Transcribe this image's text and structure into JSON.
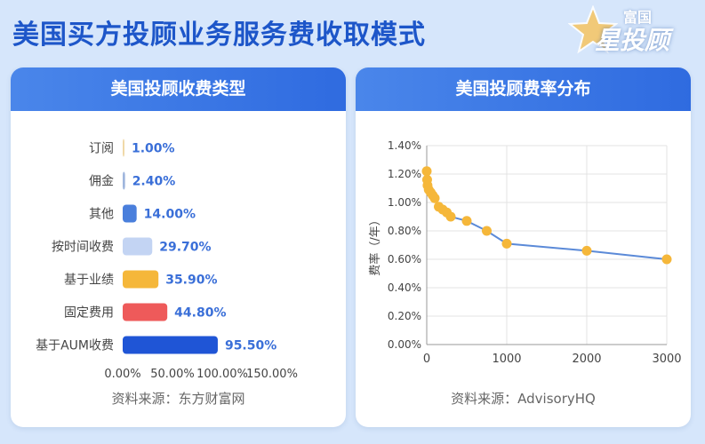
{
  "page_title": "美国买方投顾业务服务费收取模式",
  "brand": {
    "top": "富国",
    "main": "星投顾"
  },
  "colors": {
    "title_blue": "#1d56c9",
    "header_blue": "#3574e4",
    "line_blue": "#5b8ad8",
    "point_orange": "#f5b73a",
    "label_blue": "#3a6fd8"
  },
  "left_card": {
    "title": "美国投顾收费类型",
    "source": "资料来源：东方财富网"
  },
  "right_card": {
    "title": "美国投顾费率分布",
    "source": "资料来源：AdvisoryHQ"
  },
  "chart_data": [
    {
      "type": "bar",
      "orientation": "horizontal",
      "categories": [
        "订阅",
        "佣金",
        "其他",
        "按时间收费",
        "基于业绩",
        "固定费用",
        "基于AUM收费"
      ],
      "values": [
        1.0,
        2.4,
        14.0,
        29.7,
        35.9,
        44.8,
        95.5
      ],
      "value_labels": [
        "1.00%",
        "2.40%",
        "14.00%",
        "29.70%",
        "35.90%",
        "44.80%",
        "95.50%"
      ],
      "bar_colors": [
        "#f0d9a8",
        "#9fb6dd",
        "#4a7fdc",
        "#c3d4f3",
        "#f5b73a",
        "#ee5a5a",
        "#1f55d6"
      ],
      "xlim": [
        0,
        150
      ],
      "xticks": [
        "0.00%",
        "50.00%",
        "100.00%",
        "150.00%"
      ],
      "grid": false
    },
    {
      "type": "line",
      "x": [
        0,
        5,
        10,
        25,
        50,
        75,
        100,
        150,
        200,
        250,
        300,
        500,
        750,
        1000,
        2000,
        3000
      ],
      "y": [
        1.22,
        1.16,
        1.12,
        1.09,
        1.07,
        1.05,
        1.03,
        0.97,
        0.95,
        0.93,
        0.9,
        0.87,
        0.8,
        0.71,
        0.66,
        0.6
      ],
      "ylabel": "费率（/年）",
      "xlim": [
        0,
        3000
      ],
      "ylim": [
        0,
        1.4
      ],
      "xticks": [
        "0",
        "1000",
        "2000",
        "3000"
      ],
      "yticks": [
        "0.00%",
        "0.20%",
        "0.40%",
        "0.60%",
        "0.80%",
        "1.00%",
        "1.20%",
        "1.40%"
      ],
      "grid": true
    }
  ]
}
